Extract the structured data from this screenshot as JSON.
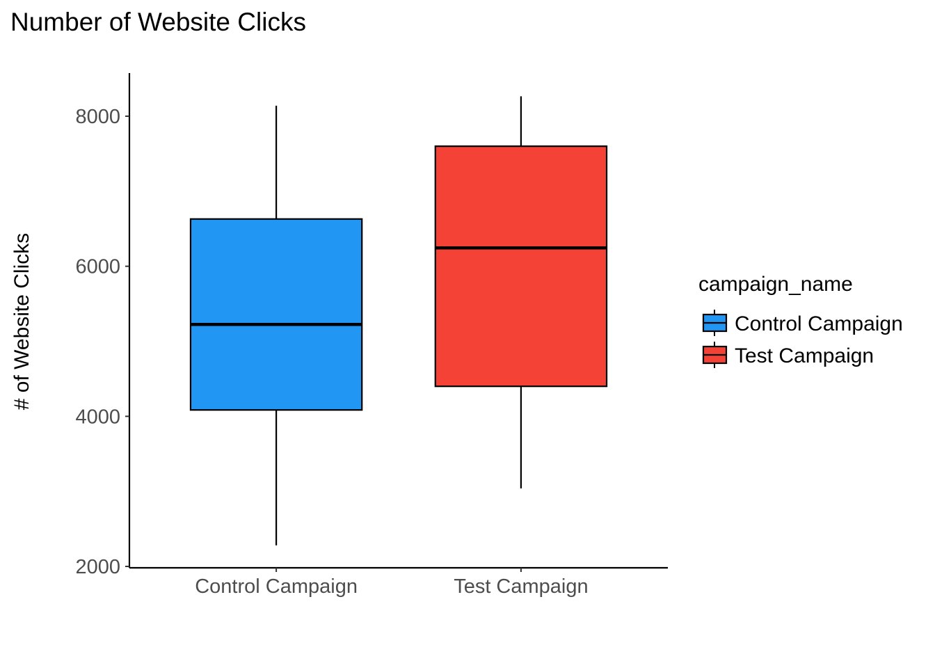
{
  "chart_data": {
    "type": "boxplot",
    "title": "Number of Website Clicks",
    "xlabel": "",
    "ylabel": "# of Website Clicks",
    "ylim": [
      2000,
      8600
    ],
    "yticks": [
      2000,
      4000,
      6000,
      8000
    ],
    "ytick_labels": [
      "2000",
      "4000",
      "6000",
      "8000"
    ],
    "categories": [
      "Control Campaign",
      "Test Campaign"
    ],
    "grid": false,
    "legend": {
      "title": "campaign_name",
      "position": "right",
      "entries": [
        "Control Campaign",
        "Test Campaign"
      ]
    },
    "series": [
      {
        "name": "Control Campaign",
        "color": "#2196F3",
        "min": 2280,
        "q1": 4085,
        "median": 5225,
        "q3": 6630,
        "max": 8140
      },
      {
        "name": "Test Campaign",
        "color": "#F44336",
        "min": 3040,
        "q1": 4400,
        "median": 6245,
        "q3": 7600,
        "max": 8265
      }
    ]
  }
}
